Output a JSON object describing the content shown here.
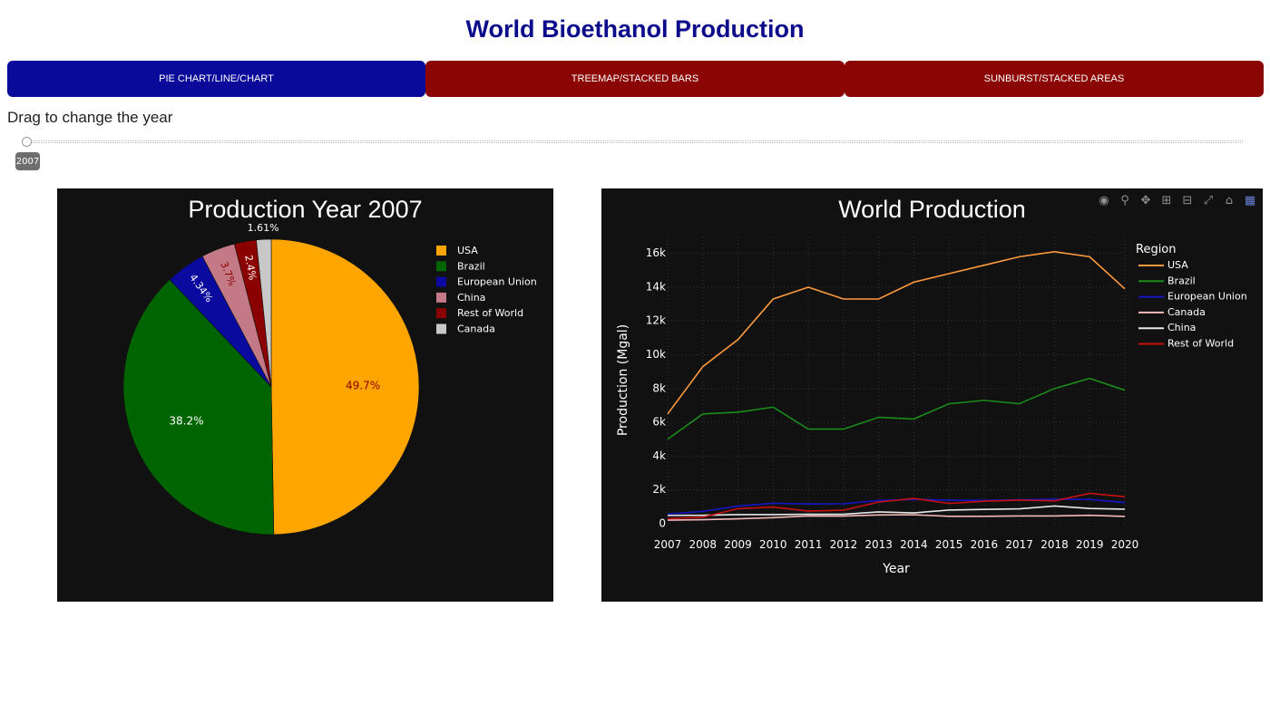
{
  "header": {
    "title": "World Bioethanol Production"
  },
  "tabs": [
    {
      "label": "PIE CHART/LINE/CHART",
      "color": "#09099a"
    },
    {
      "label": "TREEMAP/STACKED BARS",
      "color": "#8b0505"
    },
    {
      "label": "SUNBURST/STACKED AREAS",
      "color": "#8b0505"
    }
  ],
  "slider": {
    "label": "Drag to change the year",
    "value": "2007",
    "min": 2007,
    "max": 2020
  },
  "modebar": {
    "icons": [
      "camera-icon",
      "zoom-icon",
      "pan-icon",
      "zoom-in-icon",
      "zoom-out-icon",
      "autoscale-icon",
      "reset-axes-icon",
      "plotly-logo-icon"
    ]
  },
  "chart_data": [
    {
      "type": "pie",
      "title": "Production Year 2007",
      "labels": [
        "USA",
        "Brazil",
        "European Union",
        "China",
        "Rest of World",
        "Canada"
      ],
      "values": [
        49.7,
        38.2,
        4.34,
        3.7,
        2.4,
        1.61
      ],
      "text_labels": [
        "49.7%",
        "38.2%",
        "4.34%",
        "3.7%",
        "2.4%",
        "1.61%"
      ],
      "colors": [
        "#ffa500",
        "#006400",
        "#0a0a9e",
        "#c47a86",
        "#8b0000",
        "#c8c8c8"
      ],
      "text_colors": [
        "#8b0000",
        "#ffffff",
        "#ffffff",
        "#8b0000",
        "#ffffff",
        "#ffffff"
      ],
      "legend_placement": "top-right"
    },
    {
      "type": "line",
      "title": "World Production",
      "xlabel": "Year",
      "ylabel": "Production (Mgal)",
      "legend_title": "Region",
      "legend_placement": "top-right",
      "x": [
        2007,
        2008,
        2009,
        2010,
        2011,
        2012,
        2013,
        2014,
        2015,
        2016,
        2017,
        2018,
        2019,
        2020
      ],
      "x_ticks": [
        "2007",
        "2008",
        "2009",
        "2010",
        "2011",
        "2012",
        "2013",
        "2014",
        "2015",
        "2016",
        "2017",
        "2018",
        "2019",
        "2020"
      ],
      "ylim": [
        0,
        17000
      ],
      "y_ticks": [
        0,
        2000,
        4000,
        6000,
        8000,
        10000,
        12000,
        14000,
        16000
      ],
      "y_tick_labels": [
        "0",
        "2k",
        "4k",
        "6k",
        "8k",
        "10k",
        "12k",
        "14k",
        "16k"
      ],
      "grid": true,
      "series": [
        {
          "name": "USA",
          "color": "#ff9a3c",
          "values": [
            6500,
            9300,
            10900,
            13300,
            14000,
            13300,
            13300,
            14300,
            14800,
            15300,
            15800,
            16100,
            15800,
            13900
          ]
        },
        {
          "name": "Brazil",
          "color": "#1a8c1a",
          "values": [
            5000,
            6500,
            6600,
            6900,
            5600,
            5600,
            6300,
            6200,
            7100,
            7300,
            7100,
            8000,
            8600,
            7900
          ]
        },
        {
          "name": "European Union",
          "color": "#1515c8",
          "values": [
            570,
            730,
            1040,
            1210,
            1170,
            1180,
            1370,
            1440,
            1390,
            1380,
            1420,
            1450,
            1440,
            1250
          ]
        },
        {
          "name": "Canada",
          "color": "#f5b8b8",
          "values": [
            210,
            240,
            290,
            360,
            460,
            450,
            520,
            530,
            440,
            440,
            460,
            460,
            500,
            430
          ]
        },
        {
          "name": "China",
          "color": "#e8e8e8",
          "values": [
            490,
            500,
            540,
            540,
            560,
            560,
            700,
            640,
            810,
            850,
            880,
            1050,
            900,
            860
          ]
        },
        {
          "name": "Rest of World",
          "color": "#c81010",
          "values": [
            300,
            390,
            890,
            990,
            750,
            800,
            1280,
            1500,
            1200,
            1330,
            1400,
            1350,
            1800,
            1600
          ]
        }
      ]
    }
  ]
}
